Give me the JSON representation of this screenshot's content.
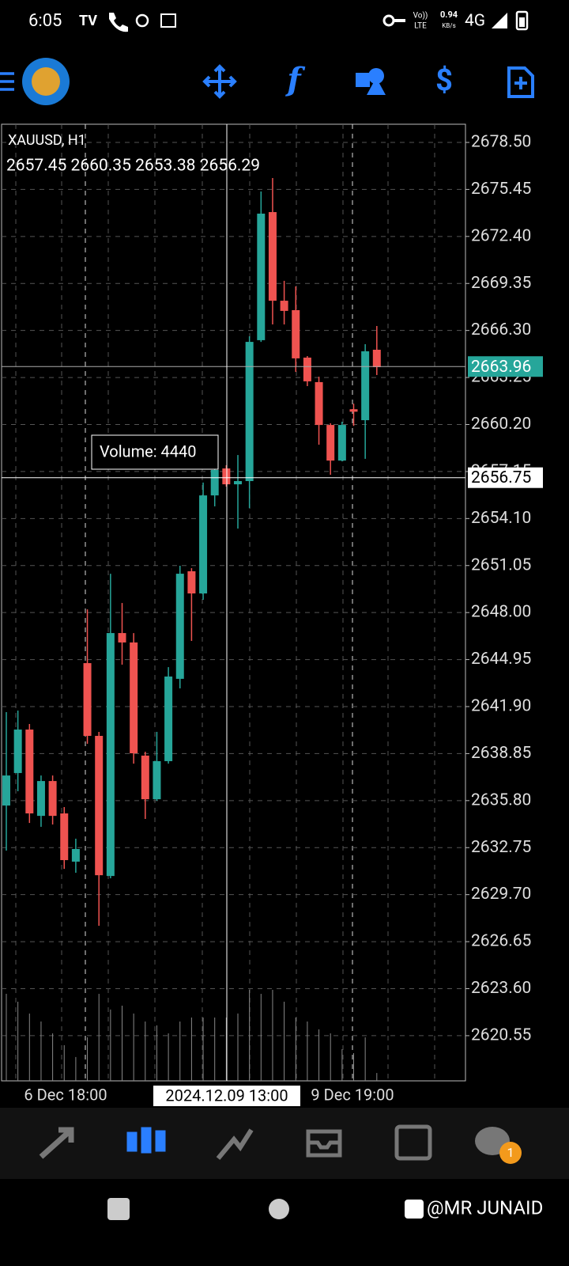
{
  "status_bar": {
    "time": "6:05",
    "volte": "Vo))",
    "lte": "LTE",
    "speed": "0.94",
    "speed_unit": "KB/s",
    "network": "4G"
  },
  "chart_data": {
    "type": "candlestick",
    "symbol": "XAUUSD, H1",
    "ohlc_text": "2657.45 2660.35 2653.38 2656.29",
    "up_color": "#26a69a",
    "down_color": "#ef5350",
    "ylim": [
      2617.62,
      2679.68
    ],
    "yticks": [
      {
        "value": 2678.5,
        "label": "2678.50"
      },
      {
        "value": 2675.45,
        "label": "2675.45"
      },
      {
        "value": 2672.4,
        "label": "2672.40"
      },
      {
        "value": 2669.35,
        "label": "2669.35"
      },
      {
        "value": 2666.3,
        "label": "2666.30"
      },
      {
        "value": 2663.25,
        "label": "2663.25"
      },
      {
        "value": 2660.2,
        "label": "2660.20"
      },
      {
        "value": 2657.15,
        "label": "2657.15"
      },
      {
        "value": 2654.1,
        "label": "2654.10"
      },
      {
        "value": 2651.05,
        "label": "2651.05"
      },
      {
        "value": 2648,
        "label": "2648.00"
      },
      {
        "value": 2644.95,
        "label": "2644.95"
      },
      {
        "value": 2641.9,
        "label": "2641.90"
      },
      {
        "value": 2638.85,
        "label": "2638.85"
      },
      {
        "value": 2635.8,
        "label": "2635.80"
      },
      {
        "value": 2632.75,
        "label": "2632.75"
      },
      {
        "value": 2629.7,
        "label": "2629.70"
      },
      {
        "value": 2626.65,
        "label": "2626.65"
      },
      {
        "value": 2623.6,
        "label": "2623.60"
      },
      {
        "value": 2620.55,
        "label": "2620.55"
      }
    ],
    "grid": true,
    "open": [
      2635.48,
      2637.59,
      2640.41,
      2634.81,
      2637.07,
      2634.97,
      2631.84,
      2644.72,
      2640.0,
      2630.91,
      2646.67,
      2646.06,
      2638.72,
      2635.89,
      2638.36,
      2643.7,
      2650.68,
      2649.24,
      2655.6,
      2657.35,
      2656.32,
      2656.53,
      2665.67,
      2673.98,
      2668.23,
      2667.62,
      2664.54,
      2662.95,
      2660.17,
      2657.86,
      2661.19,
      2660.48,
      2665.05
    ],
    "high": [
      2641.54,
      2641.64,
      2640.77,
      2637.43,
      2637.43,
      2635.38,
      2633.33,
      2648.21,
      2640.26,
      2650.52,
      2648.62,
      2646.67,
      2638.97,
      2640.26,
      2644.46,
      2651.04,
      2650.88,
      2656.43,
      2658.22,
      2657.56,
      2658.22,
      2665.92,
      2675.32,
      2676.19,
      2669.52,
      2669.16,
      2664.64,
      2663.3,
      2660.28,
      2660.38,
      2661.55,
      2665.41,
      2666.59
    ],
    "low": [
      2632.56,
      2636.41,
      2634.35,
      2634.1,
      2634.25,
      2631.37,
      2631.12,
      2639.49,
      2627.68,
      2630.76,
      2644.62,
      2638.2,
      2634.61,
      2635.79,
      2638.2,
      2643.08,
      2646.16,
      2648.83,
      2654.89,
      2656.17,
      2653.45,
      2654.78,
      2665.56,
      2666.69,
      2666.69,
      2663.61,
      2662.69,
      2658.89,
      2656.94,
      2657.81,
      2660.11,
      2657.97,
      2663.41
    ],
    "close": [
      2637.43,
      2640.41,
      2634.97,
      2637.07,
      2634.81,
      2631.94,
      2632.66,
      2640.0,
      2630.96,
      2646.67,
      2646.06,
      2638.87,
      2635.89,
      2638.36,
      2643.85,
      2650.52,
      2649.24,
      2655.6,
      2657.25,
      2656.32,
      2656.53,
      2665.56,
      2673.88,
      2668.23,
      2667.57,
      2664.49,
      2663.0,
      2660.17,
      2657.86,
      2660.17,
      2661.03,
      2664.95,
      2663.92
    ],
    "volume": [
      6100,
      5550,
      4720,
      4160,
      3330,
      2500,
      1670,
      3050,
      6100,
      5000,
      5270,
      4720,
      4160,
      3890,
      3330,
      4160,
      4440,
      4440,
      4440,
      4440,
      4720,
      6380,
      6100,
      6380,
      5550,
      4440,
      4160,
      3610,
      3330,
      2220,
      1940,
      3050,
      550
    ],
    "current_price": {
      "value": 2663.96,
      "label": "2663.96"
    },
    "crosshair_price": {
      "value": 2656.75,
      "label": "2656.75"
    },
    "volume_label": "Volume: 4440",
    "x_labels": [
      "6 Dec 18:00",
      "9 Dec 19:00"
    ],
    "crosshair_time": "2024.12.09 13:00"
  },
  "nav_badge": "1",
  "watermark": "@MR JUNAID"
}
